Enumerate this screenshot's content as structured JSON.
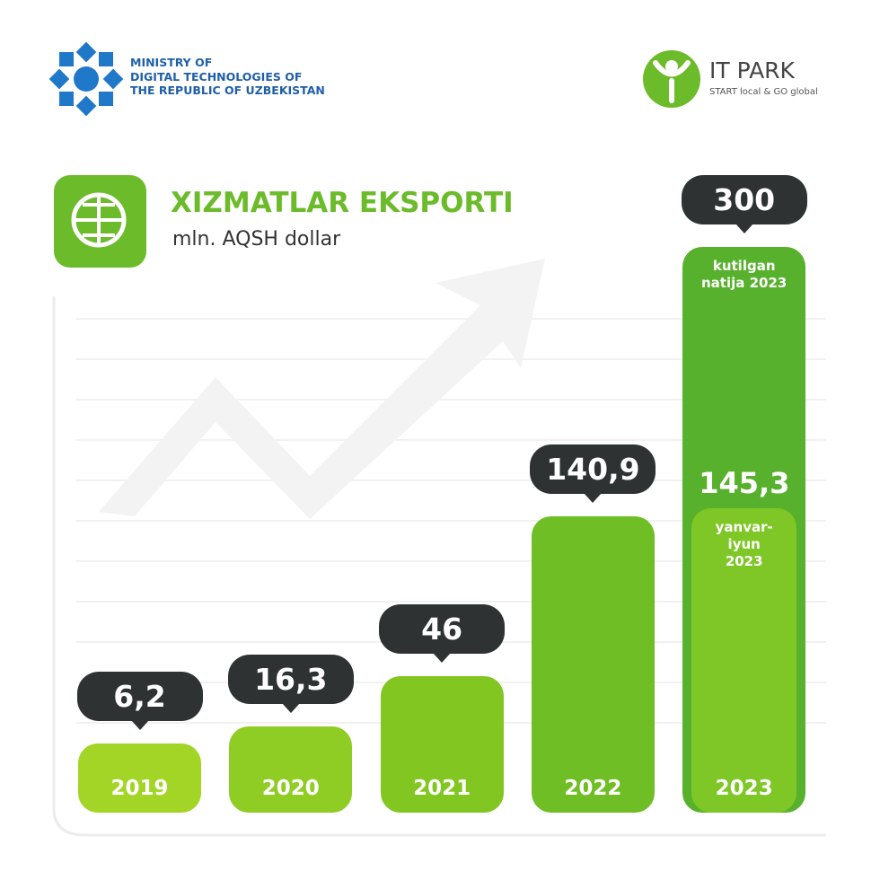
{
  "header": {
    "ministry": [
      "MINISTRY OF",
      "DIGITAL TECHNOLOGIES OF",
      "THE REPUBLIC OF UZBEKISTAN"
    ],
    "brand": "IT PARK",
    "tagline": "START local & GO global"
  },
  "chart_data": {
    "type": "bar",
    "title": "XIZMATLAR EKSPORTI",
    "subtitle": "mln. AQSH dollar",
    "categories": [
      "2019",
      "2020",
      "2021",
      "2022",
      "2023"
    ],
    "values": [
      6.2,
      16.3,
      46,
      140.9,
      300
    ],
    "value_labels": [
      "6,2",
      "16,3",
      "46",
      "140,9",
      "300"
    ],
    "colors": [
      "#a3d526",
      "#8fcc24",
      "#82c622",
      "#6fbe25",
      "#58b12d"
    ],
    "annotation": "kutilgan natija 2023",
    "partial": {
      "value": 145.3,
      "value_label": "145,3",
      "label": "yanvar-iyun 2023",
      "color": "#7ec726"
    }
  }
}
